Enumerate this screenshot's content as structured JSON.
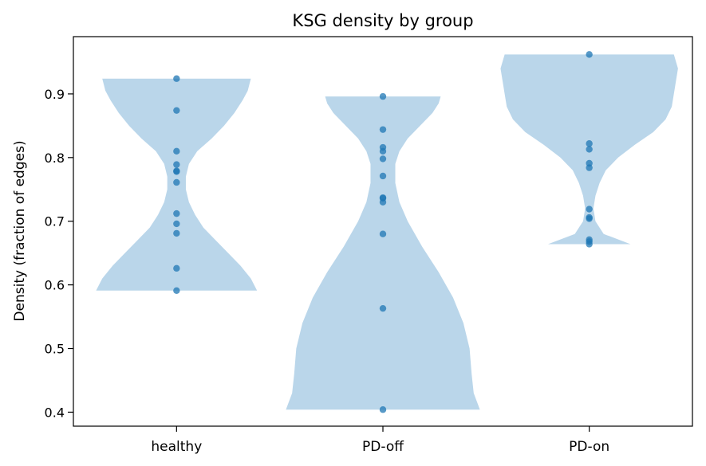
{
  "chart_data": {
    "type": "violin",
    "title": "KSG density by group",
    "xlabel": "",
    "ylabel": "Density (fraction of edges)",
    "categories": [
      "healthy",
      "PD-off",
      "PD-on"
    ],
    "ylim": [
      0.378,
      0.99
    ],
    "yticks": [
      0.4,
      0.5,
      0.6,
      0.7,
      0.8,
      0.9
    ],
    "ytick_labels": [
      "0.4",
      "0.5",
      "0.6",
      "0.7",
      "0.8",
      "0.9"
    ],
    "grid": false,
    "colors": {
      "violin": "#bad6ea",
      "point": "#1f77b4",
      "axis": "#000000"
    },
    "series": [
      {
        "category": "healthy",
        "points": [
          0.924,
          0.874,
          0.81,
          0.789,
          0.779,
          0.778,
          0.761,
          0.712,
          0.696,
          0.681,
          0.626,
          0.591
        ],
        "violin": {
          "min": 0.591,
          "max": 0.924,
          "profile": [
            [
              0.591,
              0.39
            ],
            [
              0.61,
              0.36
            ],
            [
              0.63,
              0.31
            ],
            [
              0.65,
              0.25
            ],
            [
              0.67,
              0.19
            ],
            [
              0.69,
              0.13
            ],
            [
              0.71,
              0.09
            ],
            [
              0.73,
              0.06
            ],
            [
              0.75,
              0.045
            ],
            [
              0.77,
              0.045
            ],
            [
              0.79,
              0.06
            ],
            [
              0.81,
              0.1
            ],
            [
              0.83,
              0.17
            ],
            [
              0.85,
              0.23
            ],
            [
              0.87,
              0.28
            ],
            [
              0.89,
              0.32
            ],
            [
              0.905,
              0.345
            ],
            [
              0.924,
              0.36
            ]
          ]
        }
      },
      {
        "category": "PD-off",
        "points": [
          0.896,
          0.844,
          0.816,
          0.81,
          0.798,
          0.771,
          0.736,
          0.737,
          0.73,
          0.68,
          0.563,
          0.404
        ],
        "violin": {
          "min": 0.404,
          "max": 0.896,
          "profile": [
            [
              0.404,
              0.47
            ],
            [
              0.43,
              0.44
            ],
            [
              0.46,
              0.43
            ],
            [
              0.5,
              0.42
            ],
            [
              0.54,
              0.39
            ],
            [
              0.58,
              0.34
            ],
            [
              0.62,
              0.27
            ],
            [
              0.66,
              0.19
            ],
            [
              0.7,
              0.12
            ],
            [
              0.73,
              0.08
            ],
            [
              0.76,
              0.06
            ],
            [
              0.79,
              0.06
            ],
            [
              0.81,
              0.08
            ],
            [
              0.83,
              0.12
            ],
            [
              0.85,
              0.18
            ],
            [
              0.87,
              0.24
            ],
            [
              0.885,
              0.27
            ],
            [
              0.896,
              0.28
            ]
          ]
        }
      },
      {
        "category": "PD-on",
        "points": [
          0.962,
          0.822,
          0.813,
          0.791,
          0.784,
          0.719,
          0.706,
          0.704,
          0.671,
          0.668,
          0.664
        ],
        "violin": {
          "min": 0.664,
          "max": 0.962,
          "profile": [
            [
              0.664,
              0.2
            ],
            [
              0.68,
              0.07
            ],
            [
              0.7,
              0.03
            ],
            [
              0.72,
              0.02
            ],
            [
              0.74,
              0.03
            ],
            [
              0.76,
              0.05
            ],
            [
              0.78,
              0.08
            ],
            [
              0.8,
              0.14
            ],
            [
              0.82,
              0.22
            ],
            [
              0.84,
              0.31
            ],
            [
              0.86,
              0.37
            ],
            [
              0.88,
              0.4
            ],
            [
              0.9,
              0.41
            ],
            [
              0.92,
              0.42
            ],
            [
              0.94,
              0.43
            ],
            [
              0.962,
              0.41
            ]
          ]
        }
      }
    ]
  }
}
